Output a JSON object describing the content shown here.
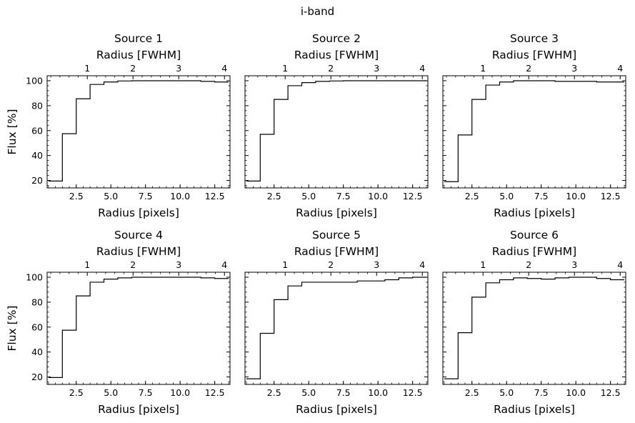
{
  "figure": {
    "suptitle": "i-band"
  },
  "chart_data": [
    {
      "type": "line",
      "drawstyle": "steps-mid",
      "title": "Source 1",
      "xlabel": "Radius [pixels]",
      "ylabel": "Flux [%]",
      "secondary_xlabel": "Radius [FWHM]",
      "x": [
        1,
        2,
        3,
        4,
        5,
        6,
        7,
        8,
        9,
        10,
        11,
        12,
        13
      ],
      "values": [
        19.5,
        57.5,
        85.5,
        97,
        99,
        99.8,
        100,
        100,
        100,
        100,
        100,
        99.5,
        99
      ],
      "xlim": [
        0.4,
        13.6
      ],
      "ylim": [
        14,
        104
      ],
      "xticks": [
        2.5,
        5.0,
        7.5,
        10.0,
        12.5
      ],
      "xtick_labels": [
        "2.5",
        "5.0",
        "7.5",
        "10.0",
        "12.5"
      ],
      "yticks": [
        20,
        40,
        60,
        80,
        100
      ],
      "ytick_labels": [
        "20",
        "40",
        "60",
        "80",
        "100"
      ],
      "fwhm_ticks": [
        1,
        2,
        3,
        4
      ],
      "fwhm_tick_labels": [
        "1",
        "2",
        "3",
        "4"
      ],
      "fwhm_pixels": 3.3
    },
    {
      "type": "line",
      "drawstyle": "steps-mid",
      "title": "Source 2",
      "xlabel": "Radius [pixels]",
      "ylabel": "",
      "secondary_xlabel": "Radius [FWHM]",
      "x": [
        1,
        2,
        3,
        4,
        5,
        6,
        7,
        8,
        9,
        10,
        11,
        12,
        13
      ],
      "values": [
        19.5,
        57,
        85,
        96,
        98.5,
        99.5,
        99.8,
        100,
        100,
        100,
        100,
        100,
        100
      ],
      "xlim": [
        0.4,
        13.6
      ],
      "ylim": [
        14,
        104
      ],
      "xticks": [
        2.5,
        5.0,
        7.5,
        10.0,
        12.5
      ],
      "xtick_labels": [
        "2.5",
        "5.0",
        "7.5",
        "10.0",
        "12.5"
      ],
      "yticks": [
        20,
        40,
        60,
        80,
        100
      ],
      "ytick_labels": [],
      "fwhm_ticks": [
        1,
        2,
        3,
        4
      ],
      "fwhm_tick_labels": [
        "1",
        "2",
        "3",
        "4"
      ],
      "fwhm_pixels": 3.3
    },
    {
      "type": "line",
      "drawstyle": "steps-mid",
      "title": "Source 3",
      "xlabel": "Radius [pixels]",
      "ylabel": "",
      "secondary_xlabel": "Radius [FWHM]",
      "x": [
        1,
        2,
        3,
        4,
        5,
        6,
        7,
        8,
        9,
        10,
        11,
        12,
        13
      ],
      "values": [
        19,
        56.5,
        85,
        96.5,
        99,
        100,
        100,
        100,
        99.5,
        99.5,
        99.5,
        99,
        99
      ],
      "xlim": [
        0.4,
        13.6
      ],
      "ylim": [
        14,
        104
      ],
      "xticks": [
        2.5,
        5.0,
        7.5,
        10.0,
        12.5
      ],
      "xtick_labels": [
        "2.5",
        "5.0",
        "7.5",
        "10.0",
        "12.5"
      ],
      "yticks": [
        20,
        40,
        60,
        80,
        100
      ],
      "ytick_labels": [],
      "fwhm_ticks": [
        1,
        2,
        3,
        4
      ],
      "fwhm_tick_labels": [
        "1",
        "2",
        "3",
        "4"
      ],
      "fwhm_pixels": 3.3
    },
    {
      "type": "line",
      "drawstyle": "steps-mid",
      "title": "Source 4",
      "xlabel": "Radius [pixels]",
      "ylabel": "Flux [%]",
      "secondary_xlabel": "Radius [FWHM]",
      "x": [
        1,
        2,
        3,
        4,
        5,
        6,
        7,
        8,
        9,
        10,
        11,
        12,
        13
      ],
      "values": [
        19.5,
        57.5,
        85,
        96,
        98.5,
        99.5,
        100,
        100,
        100,
        100,
        100,
        99.5,
        99
      ],
      "xlim": [
        0.4,
        13.6
      ],
      "ylim": [
        14,
        104
      ],
      "xticks": [
        2.5,
        5.0,
        7.5,
        10.0,
        12.5
      ],
      "xtick_labels": [
        "2.5",
        "5.0",
        "7.5",
        "10.0",
        "12.5"
      ],
      "yticks": [
        20,
        40,
        60,
        80,
        100
      ],
      "ytick_labels": [
        "20",
        "40",
        "60",
        "80",
        "100"
      ],
      "fwhm_ticks": [
        1,
        2,
        3,
        4
      ],
      "fwhm_tick_labels": [
        "1",
        "2",
        "3",
        "4"
      ],
      "fwhm_pixels": 3.3
    },
    {
      "type": "line",
      "drawstyle": "steps-mid",
      "title": "Source 5",
      "xlabel": "Radius [pixels]",
      "ylabel": "",
      "secondary_xlabel": "Radius [FWHM]",
      "x": [
        1,
        2,
        3,
        4,
        5,
        6,
        7,
        8,
        9,
        10,
        11,
        12,
        13
      ],
      "values": [
        18.5,
        55,
        82,
        93,
        96,
        96,
        96,
        96,
        97,
        97,
        98,
        99.5,
        100
      ],
      "xlim": [
        0.4,
        13.6
      ],
      "ylim": [
        14,
        104
      ],
      "xticks": [
        2.5,
        5.0,
        7.5,
        10.0,
        12.5
      ],
      "xtick_labels": [
        "2.5",
        "5.0",
        "7.5",
        "10.0",
        "12.5"
      ],
      "yticks": [
        20,
        40,
        60,
        80,
        100
      ],
      "ytick_labels": [],
      "fwhm_ticks": [
        1,
        2,
        3,
        4
      ],
      "fwhm_tick_labels": [
        "1",
        "2",
        "3",
        "4"
      ],
      "fwhm_pixels": 3.3
    },
    {
      "type": "line",
      "drawstyle": "steps-mid",
      "title": "Source 6",
      "xlabel": "Radius [pixels]",
      "ylabel": "",
      "secondary_xlabel": "Radius [FWHM]",
      "x": [
        1,
        2,
        3,
        4,
        5,
        6,
        7,
        8,
        9,
        10,
        11,
        12,
        13
      ],
      "values": [
        18.5,
        55.5,
        84,
        95.5,
        98,
        99.5,
        99,
        98.5,
        99.5,
        100,
        100,
        99,
        98
      ],
      "xlim": [
        0.4,
        13.6
      ],
      "ylim": [
        14,
        104
      ],
      "xticks": [
        2.5,
        5.0,
        7.5,
        10.0,
        12.5
      ],
      "xtick_labels": [
        "2.5",
        "5.0",
        "7.5",
        "10.0",
        "12.5"
      ],
      "yticks": [
        20,
        40,
        60,
        80,
        100
      ],
      "ytick_labels": [],
      "fwhm_ticks": [
        1,
        2,
        3,
        4
      ],
      "fwhm_tick_labels": [
        "1",
        "2",
        "3",
        "4"
      ],
      "fwhm_pixels": 3.3
    }
  ]
}
